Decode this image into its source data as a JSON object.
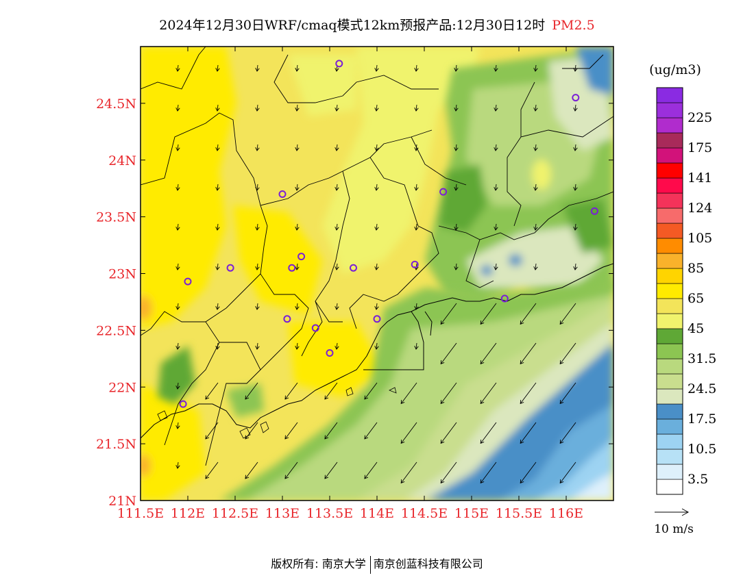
{
  "title": {
    "main": "2024年12月30日WRF/cmaq模式12km预报产品:12月30日12时",
    "pollutant": "PM2.5"
  },
  "map": {
    "lon_range": [
      111.5,
      116.5
    ],
    "lat_range": [
      21,
      25
    ],
    "lon_ticks": [
      "111.5E",
      "112E",
      "112.5E",
      "113E",
      "113.5E",
      "114E",
      "114.5E",
      "115E",
      "115.5E",
      "116E"
    ],
    "lat_ticks": [
      "21N",
      "21.5N",
      "22N",
      "22.5N",
      "23N",
      "23.5N",
      "24N",
      "24.5N"
    ],
    "tick_color": "#e8262b",
    "stations": [
      {
        "lon": 113.6,
        "lat": 24.85
      },
      {
        "lon": 116.1,
        "lat": 24.55
      },
      {
        "lon": 114.7,
        "lat": 23.72
      },
      {
        "lon": 113.0,
        "lat": 23.7
      },
      {
        "lon": 116.3,
        "lat": 23.55
      },
      {
        "lon": 113.2,
        "lat": 23.15
      },
      {
        "lon": 114.4,
        "lat": 23.08
      },
      {
        "lon": 112.45,
        "lat": 23.05
      },
      {
        "lon": 113.1,
        "lat": 23.05
      },
      {
        "lon": 113.75,
        "lat": 23.05
      },
      {
        "lon": 112.0,
        "lat": 22.93
      },
      {
        "lon": 115.35,
        "lat": 22.78
      },
      {
        "lon": 113.05,
        "lat": 22.6
      },
      {
        "lon": 114.0,
        "lat": 22.6
      },
      {
        "lon": 113.35,
        "lat": 22.52
      },
      {
        "lon": 113.5,
        "lat": 22.3
      },
      {
        "lon": 111.95,
        "lat": 21.85
      }
    ]
  },
  "legend": {
    "unit": "(ug/m3)",
    "levels": [
      {
        "label": "",
        "color": "#ffffff"
      },
      {
        "label": "3.5",
        "color": "#def0fb"
      },
      {
        "label": "",
        "color": "#b7e1f6"
      },
      {
        "label": "10.5",
        "color": "#9dd3f2"
      },
      {
        "label": "",
        "color": "#6aafdc"
      },
      {
        "label": "17.5",
        "color": "#4a8fc7"
      },
      {
        "label": "",
        "color": "#dbe7be"
      },
      {
        "label": "24.5",
        "color": "#c9de8e"
      },
      {
        "label": "",
        "color": "#b9d97e"
      },
      {
        "label": "31.5",
        "color": "#8cc552"
      },
      {
        "label": "",
        "color": "#5fa836"
      },
      {
        "label": "45",
        "color": "#f0f36d"
      },
      {
        "label": "",
        "color": "#f3e45a"
      },
      {
        "label": "65",
        "color": "#ffeb00"
      },
      {
        "label": "",
        "color": "#ffd400"
      },
      {
        "label": "85",
        "color": "#f9b22b"
      },
      {
        "label": "",
        "color": "#ff8c00"
      },
      {
        "label": "105",
        "color": "#f45a24"
      },
      {
        "label": "",
        "color": "#f76b6b"
      },
      {
        "label": "124",
        "color": "#f4335a"
      },
      {
        "label": "",
        "color": "#ff0a4b"
      },
      {
        "label": "141",
        "color": "#ff0000"
      },
      {
        "label": "",
        "color": "#d2127a"
      },
      {
        "label": "175",
        "color": "#a82a5a"
      },
      {
        "label": "",
        "color": "#b02ccd"
      },
      {
        "label": "225",
        "color": "#9b2fdc"
      },
      {
        "label": "",
        "color": "#8a2be2"
      }
    ],
    "wind_ref": "10 m/s"
  },
  "footer": {
    "left": "版权所有: 南京大学",
    "right": "南京创蓝科技有限公司"
  }
}
